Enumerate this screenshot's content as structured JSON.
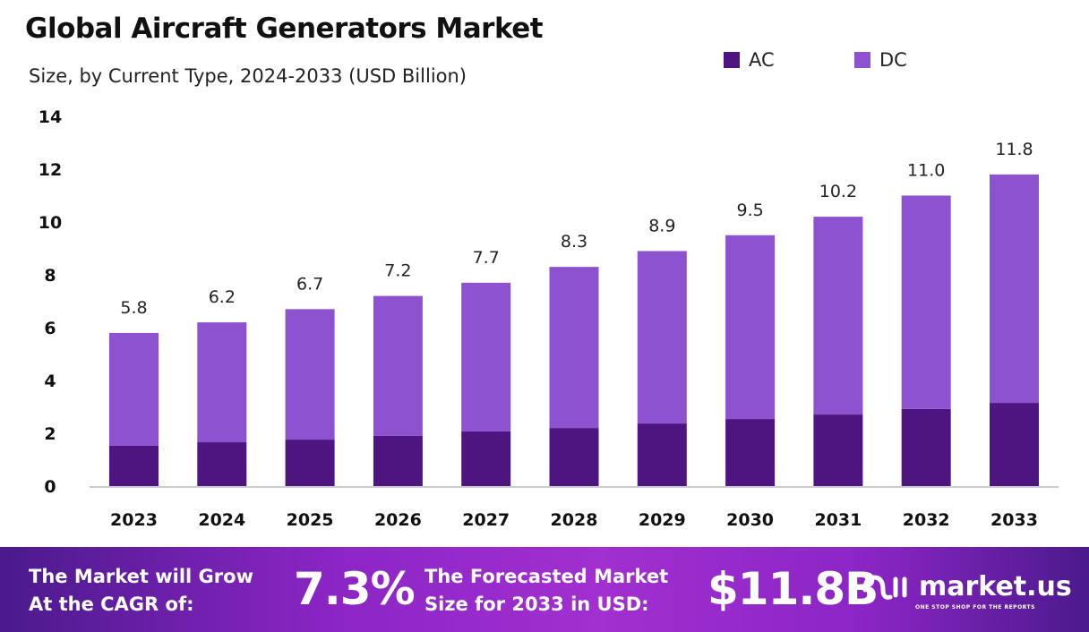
{
  "chart_data": {
    "type": "bar",
    "stacked": true,
    "title": "Global Aircraft Generators Market",
    "subtitle": "Size, by Current Type, 2024-2033 (USD Billion)",
    "categories": [
      "2023",
      "2024",
      "2025",
      "2026",
      "2027",
      "2028",
      "2029",
      "2030",
      "2031",
      "2032",
      "2033"
    ],
    "series": [
      {
        "name": "AC",
        "color": "#4e1580",
        "values": [
          1.53,
          1.66,
          1.76,
          1.9,
          2.07,
          2.2,
          2.37,
          2.54,
          2.71,
          2.92,
          3.15
        ]
      },
      {
        "name": "DC",
        "color": "#8d52d0",
        "values": [
          4.27,
          4.54,
          4.94,
          5.3,
          5.63,
          6.1,
          6.53,
          6.96,
          7.49,
          8.08,
          8.65
        ]
      }
    ],
    "totals": [
      "5.8",
      "6.2",
      "6.7",
      "7.2",
      "7.7",
      "8.3",
      "8.9",
      "9.5",
      "10.2",
      "11.0",
      "11.8"
    ],
    "yticks": [
      "0",
      "2",
      "4",
      "6",
      "8",
      "10",
      "12",
      "14"
    ],
    "ylim": [
      0,
      14
    ],
    "grid": false,
    "legend_position": "top-right"
  },
  "footer": {
    "cagr_line1": "The Market will Grow",
    "cagr_line2": "At the CAGR of:",
    "cagr_value": "7.3%",
    "forecast_line1": "The Forecasted Market",
    "forecast_line2": "Size for 2033 in USD:",
    "forecast_value": "$11.8B",
    "logo_name": "market.us",
    "logo_tagline": "ONE STOP SHOP FOR THE REPORTS"
  }
}
